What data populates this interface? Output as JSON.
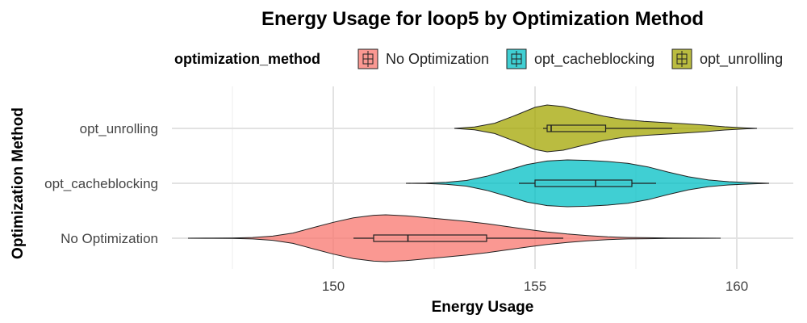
{
  "chart_data": {
    "type": "violin",
    "title": "Energy Usage for loop5 by Optimization Method",
    "xlabel": "Energy Usage",
    "ylabel": "Optimization Method",
    "xlim": [
      144.5,
      161.3
    ],
    "x_ticks": [
      150,
      155,
      160
    ],
    "grid": true,
    "orientation": "horizontal",
    "legend": {
      "title": "optimization_method",
      "position": "top",
      "entries": [
        "No Optimization",
        "opt_cacheblocking",
        "opt_unrolling"
      ]
    },
    "series": [
      {
        "name": "No Optimization",
        "color": "#F8766D",
        "box": {
          "whisker_low": 150.5,
          "q1": 151.0,
          "median": 151.85,
          "q3": 153.8,
          "whisker_high": 155.7
        },
        "density": [
          [
            146.4,
            0
          ],
          [
            147.0,
            0.003
          ],
          [
            147.5,
            0.01
          ],
          [
            148.0,
            0.03
          ],
          [
            148.5,
            0.09
          ],
          [
            149.0,
            0.22
          ],
          [
            149.5,
            0.45
          ],
          [
            150.0,
            0.68
          ],
          [
            150.5,
            0.87
          ],
          [
            151.0,
            0.98
          ],
          [
            151.3,
            1.0
          ],
          [
            151.8,
            0.96
          ],
          [
            152.3,
            0.88
          ],
          [
            152.8,
            0.8
          ],
          [
            153.3,
            0.72
          ],
          [
            153.8,
            0.62
          ],
          [
            154.3,
            0.5
          ],
          [
            154.8,
            0.38
          ],
          [
            155.3,
            0.27
          ],
          [
            155.8,
            0.18
          ],
          [
            156.3,
            0.11
          ],
          [
            156.8,
            0.06
          ],
          [
            157.3,
            0.03
          ],
          [
            157.8,
            0.02
          ],
          [
            158.3,
            0.01
          ],
          [
            159.0,
            0.003
          ],
          [
            159.6,
            0
          ]
        ]
      },
      {
        "name": "opt_cacheblocking",
        "color": "#00BFC4",
        "box": {
          "whisker_low": 154.6,
          "q1": 155.0,
          "median": 156.5,
          "q3": 157.4,
          "whisker_high": 158.0
        },
        "density": [
          [
            151.8,
            0
          ],
          [
            152.3,
            0.01
          ],
          [
            152.8,
            0.04
          ],
          [
            153.3,
            0.12
          ],
          [
            153.8,
            0.3
          ],
          [
            154.3,
            0.55
          ],
          [
            154.8,
            0.8
          ],
          [
            155.3,
            0.95
          ],
          [
            155.8,
            1.0
          ],
          [
            156.3,
            0.98
          ],
          [
            156.8,
            0.93
          ],
          [
            157.3,
            0.85
          ],
          [
            157.8,
            0.7
          ],
          [
            158.3,
            0.48
          ],
          [
            158.8,
            0.28
          ],
          [
            159.3,
            0.14
          ],
          [
            159.8,
            0.07
          ],
          [
            160.3,
            0.03
          ],
          [
            160.8,
            0
          ]
        ]
      },
      {
        "name": "opt_unrolling",
        "color": "#A3A500",
        "box": {
          "whisker_low": 155.2,
          "q1": 155.3,
          "median": 155.4,
          "q3": 156.75,
          "whisker_high": 158.4
        },
        "density": [
          [
            153.0,
            0
          ],
          [
            153.5,
            0.06
          ],
          [
            154.0,
            0.22
          ],
          [
            154.5,
            0.55
          ],
          [
            155.0,
            0.9
          ],
          [
            155.3,
            1.0
          ],
          [
            155.7,
            0.93
          ],
          [
            156.2,
            0.72
          ],
          [
            156.7,
            0.52
          ],
          [
            157.2,
            0.38
          ],
          [
            157.7,
            0.3
          ],
          [
            158.2,
            0.25
          ],
          [
            158.7,
            0.2
          ],
          [
            159.2,
            0.14
          ],
          [
            159.7,
            0.07
          ],
          [
            160.2,
            0.02
          ],
          [
            160.5,
            0
          ]
        ]
      }
    ]
  }
}
